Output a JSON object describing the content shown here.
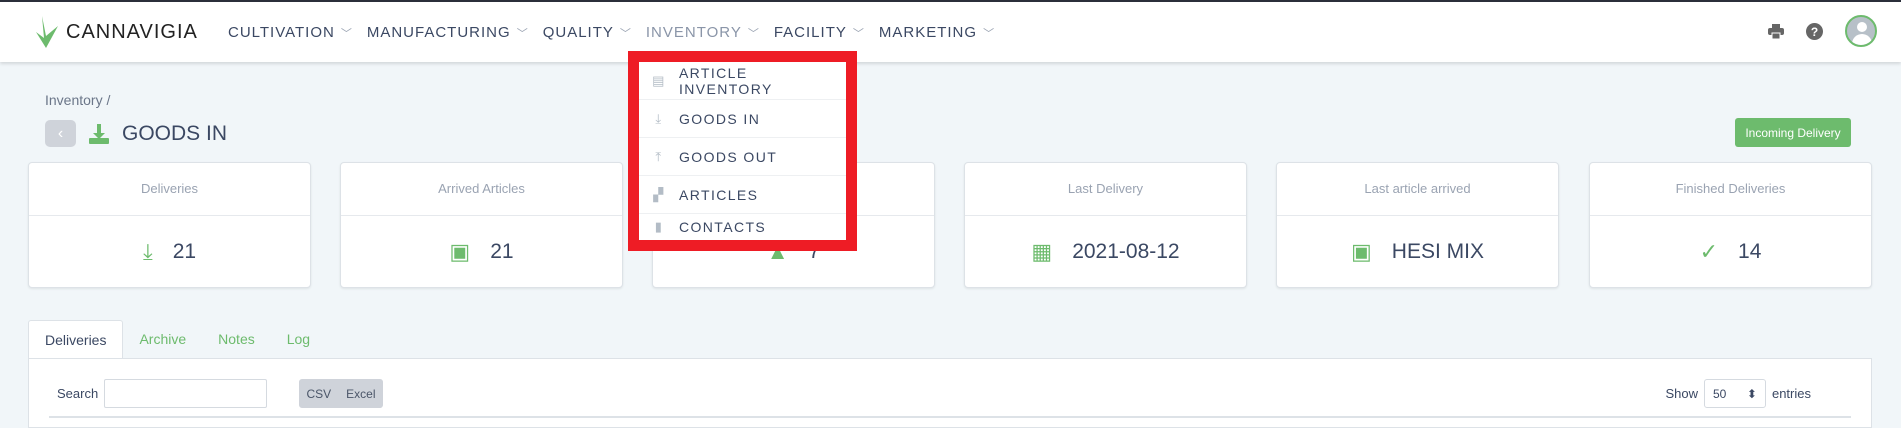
{
  "brand": {
    "name": "CANNAVIGIA",
    "accent": "#6dbb6d",
    "highlight": "#ee1c25"
  },
  "nav": [
    {
      "label": "CULTIVATION"
    },
    {
      "label": "MANUFACTURING"
    },
    {
      "label": "QUALITY"
    },
    {
      "label": "INVENTORY",
      "active": true
    },
    {
      "label": "FACILITY"
    },
    {
      "label": "MARKETING"
    }
  ],
  "header_icons": [
    "print-icon",
    "help-icon",
    "avatar"
  ],
  "breadcrumb": "Inventory /",
  "page_title": "GOODS IN",
  "incoming_button": "Incoming Delivery",
  "cards": [
    {
      "title": "Deliveries",
      "value": "21",
      "icon": "download-icon"
    },
    {
      "title": "Arrived Articles",
      "value": "21",
      "icon": "box-icon"
    },
    {
      "title": "",
      "value": "7",
      "icon": "box-stack-icon"
    },
    {
      "title": "Last Delivery",
      "value": "2021-08-12",
      "icon": "calendar-icon"
    },
    {
      "title": "Last article arrived",
      "value": "HESI MIX",
      "icon": "box-icon"
    },
    {
      "title": "Finished Deliveries",
      "value": "14",
      "icon": "check-icon"
    }
  ],
  "tabs": [
    {
      "label": "Deliveries",
      "active": true
    },
    {
      "label": "Archive"
    },
    {
      "label": "Notes"
    },
    {
      "label": "Log"
    }
  ],
  "table_controls": {
    "search_label": "Search",
    "search_value": "",
    "csv": "CSV",
    "excel": "Excel",
    "show_label": "Show",
    "entries_value": "50",
    "entries_label": "entries"
  },
  "dropdown": [
    {
      "label": "ARTICLE INVENTORY",
      "icon": "warehouse-icon"
    },
    {
      "label": "GOODS IN",
      "icon": "download-icon"
    },
    {
      "label": "GOODS OUT",
      "icon": "upload-icon"
    },
    {
      "label": "ARTICLES",
      "icon": "boxes-icon"
    },
    {
      "label": "CONTACTS",
      "icon": "address-book-icon"
    }
  ]
}
